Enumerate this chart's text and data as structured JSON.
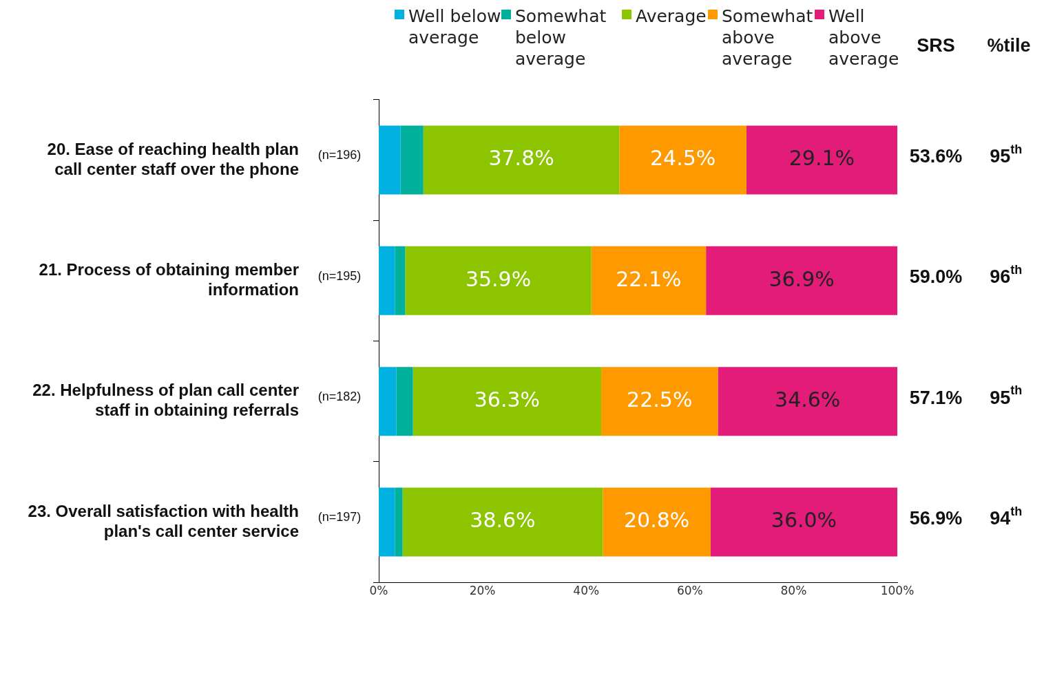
{
  "chart_data": {
    "type": "bar",
    "orientation": "horizontal",
    "stacked": true,
    "categories": [
      "20. Ease of reaching health plan call center staff over the phone",
      "21. Process of obtaining member information",
      "22. Helpfulness of plan call center staff in obtaining referrals",
      "23. Overall satisfaction with health plan's call center service"
    ],
    "series": [
      {
        "name": "Well below average",
        "color": "#00b0e0",
        "values": [
          4.2,
          3.1,
          3.4,
          3.1
        ],
        "value_labels": [
          null,
          null,
          null,
          null
        ]
      },
      {
        "name": "Somewhat below average",
        "color": "#00b09a",
        "values": [
          4.4,
          2.0,
          3.2,
          1.5
        ],
        "value_labels": [
          null,
          null,
          null,
          null
        ]
      },
      {
        "name": "Average",
        "color": "#8cc400",
        "values": [
          37.8,
          35.9,
          36.3,
          38.6
        ],
        "value_labels": [
          "37.8%",
          "35.9%",
          "36.3%",
          "38.6%"
        ]
      },
      {
        "name": "Somewhat above average",
        "color": "#ff9900",
        "values": [
          24.5,
          22.1,
          22.5,
          20.8
        ],
        "value_labels": [
          "24.5%",
          "22.1%",
          "22.5%",
          "20.8%"
        ]
      },
      {
        "name": "Well above average",
        "color": "#e31c79",
        "values": [
          29.1,
          36.9,
          34.6,
          36.0
        ],
        "value_labels": [
          "29.1%",
          "36.9%",
          "34.6%",
          "36.0%"
        ]
      }
    ],
    "xlim": [
      0,
      100
    ],
    "xticks": [
      {
        "value": 0,
        "label": "0%"
      },
      {
        "value": 20,
        "label": "20%"
      },
      {
        "value": 40,
        "label": "40%"
      },
      {
        "value": 60,
        "label": "60%"
      },
      {
        "value": 80,
        "label": "80%"
      },
      {
        "value": 100,
        "label": "100%"
      }
    ],
    "grid": false,
    "legend": "top",
    "annotations": [
      "SRS",
      "%tile",
      "(n=196)",
      "53.6%",
      "95$^{th}$",
      "(n=195)",
      "59.0%",
      "96$^{th}$",
      "(n=182)",
      "57.1%",
      "95$^{th}$",
      "(n=197)",
      "56.9%",
      "94$^{th}$"
    ]
  }
}
